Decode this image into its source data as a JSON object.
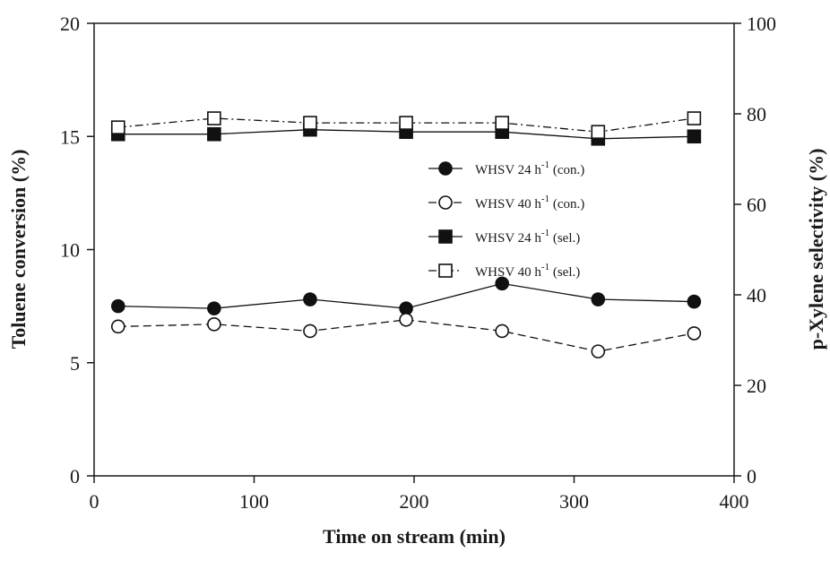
{
  "chart_data": {
    "type": "line",
    "xlabel": "Time on stream (min)",
    "ylabel_left": "Toluene conversion (%)",
    "ylabel_right": "p-Xylene selectivity (%)",
    "xlim": [
      0,
      400
    ],
    "ylim_left": [
      0,
      20
    ],
    "ylim_right": [
      0,
      100
    ],
    "x_ticks": [
      "0",
      "100",
      "200",
      "300",
      "400"
    ],
    "y_left_ticks": [
      "0",
      "5",
      "10",
      "15",
      "20"
    ],
    "y_right_ticks": [
      "0",
      "20",
      "40",
      "60",
      "80",
      "100"
    ],
    "grid": false,
    "legend_position": "center-right",
    "x": [
      15,
      75,
      135,
      195,
      255,
      315,
      375
    ],
    "series": [
      {
        "name": "WHSV 24 h",
        "sup": "-1",
        "suffix": " (con.)",
        "axis": "left",
        "marker": "circle",
        "filled": true,
        "dash": "solid",
        "color": "#111111",
        "values": [
          7.5,
          7.4,
          7.8,
          7.4,
          8.5,
          7.8,
          7.7
        ]
      },
      {
        "name": "WHSV 40 h",
        "sup": "-1",
        "suffix": " (con.)",
        "axis": "left",
        "marker": "circle",
        "filled": false,
        "dash": "dashed",
        "color": "#111111",
        "values": [
          6.6,
          6.7,
          6.4,
          6.9,
          6.4,
          5.5,
          6.3
        ]
      },
      {
        "name": "WHSV 24 h",
        "sup": "-1",
        "suffix": " (sel.)",
        "axis": "right",
        "marker": "square",
        "filled": true,
        "dash": "solid",
        "color": "#111111",
        "values": [
          75.5,
          75.5,
          76.5,
          76.0,
          76.0,
          74.5,
          75.0
        ]
      },
      {
        "name": "WHSV 40 h",
        "sup": "-1",
        "suffix": " (sel.)",
        "axis": "right",
        "marker": "square",
        "filled": false,
        "dash": "dashdot",
        "color": "#111111",
        "values": [
          77.0,
          79.0,
          78.0,
          78.0,
          78.0,
          76.0,
          79.0
        ]
      }
    ]
  }
}
